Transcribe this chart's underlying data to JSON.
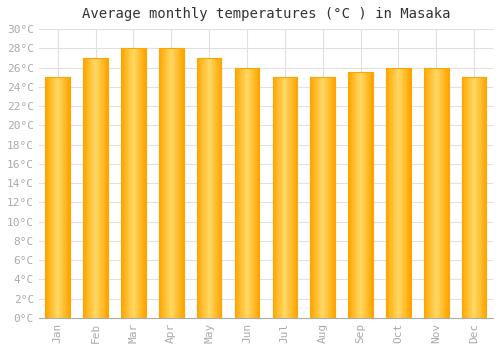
{
  "title": "Average monthly temperatures (°C ) in Masaka",
  "months": [
    "Jan",
    "Feb",
    "Mar",
    "Apr",
    "May",
    "Jun",
    "Jul",
    "Aug",
    "Sep",
    "Oct",
    "Nov",
    "Dec"
  ],
  "temperatures": [
    25,
    27,
    28,
    28,
    27,
    26,
    25,
    25,
    25.5,
    26,
    26,
    25
  ],
  "bar_color_center": "#FFD966",
  "bar_color_edge": "#FFA500",
  "background_color": "#FFFFFF",
  "grid_color": "#E0E0E0",
  "ylim": [
    0,
    30
  ],
  "ytick_step": 2,
  "title_fontsize": 10,
  "tick_fontsize": 8,
  "title_font_family": "monospace",
  "tick_font_family": "monospace",
  "bar_width": 0.65
}
